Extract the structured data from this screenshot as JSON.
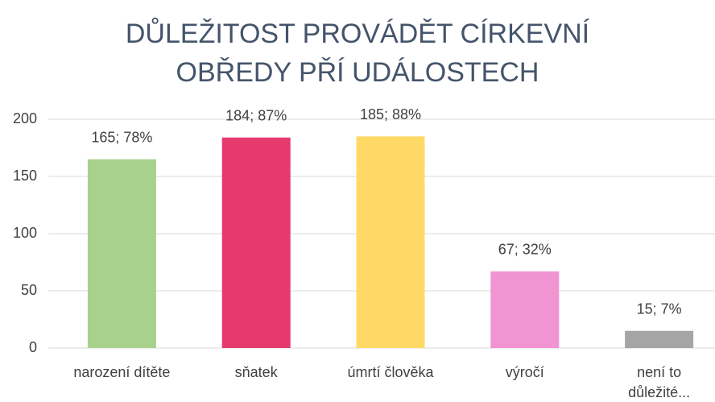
{
  "chart_data": {
    "type": "bar",
    "title": "DŮLEŽITOST PROVÁDĚT CÍRKEVNÍ OBŘEDY PŘÍ UDÁLOSTECH",
    "categories": [
      "narození dítěte",
      "sňatek",
      "úmrtí člověka",
      "výročí",
      "není to důležité..."
    ],
    "values": [
      165,
      184,
      185,
      67,
      15
    ],
    "value_labels": [
      "165; 78%",
      "184; 87%",
      "185; 88%",
      "67; 32%",
      "15; 7%"
    ],
    "colors": [
      "#a9d18e",
      "#e63a6f",
      "#ffd966",
      "#f094d2",
      "#a5a5a5"
    ],
    "ylim": [
      0,
      200
    ],
    "yticks": [
      0,
      50,
      100,
      150,
      200
    ],
    "grid": true
  }
}
